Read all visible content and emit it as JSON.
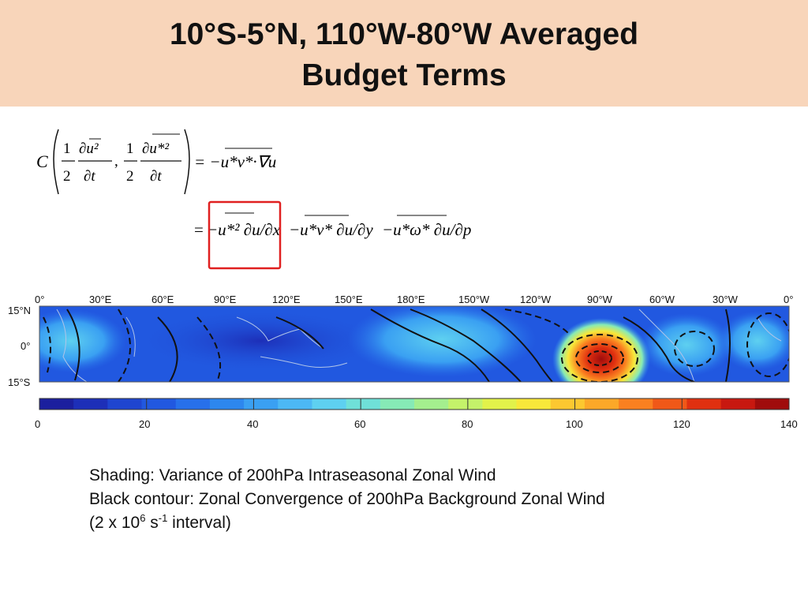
{
  "title": {
    "line1": "10°S-5°N, 110°W-80°W Averaged",
    "line2": "Budget Terms"
  },
  "equation": {
    "lhs_coef": "C",
    "half_num": "1",
    "half_den": "2",
    "ubar2_dt_num": "∂u²",
    "ustar2_dt_num": "∂u*²",
    "dt_den": "∂t",
    "comma": ",",
    "rhs1": "= −u*v*·∇u",
    "eq2": "=",
    "term1": "−u*² ∂u/∂x",
    "term2": "−u*v* ∂u/∂y",
    "term3": "−u*ω* ∂u/∂p"
  },
  "map": {
    "lon_labels": [
      "0°",
      "30°E",
      "60°E",
      "90°E",
      "120°E",
      "150°E",
      "180°E",
      "150°W",
      "120°W",
      "90°W",
      "60°W",
      "30°W",
      "0°"
    ],
    "lat_labels": [
      "15°N",
      "0°",
      "15°S"
    ],
    "colorbar_ticks": [
      "0",
      "20",
      "40",
      "60",
      "80",
      "100",
      "120",
      "140"
    ],
    "colorbar_colors": [
      "#1b1f9e",
      "#1d2fb8",
      "#1f45d0",
      "#2158e0",
      "#2770ea",
      "#2d87ee",
      "#3aa0f2",
      "#4cb8f4",
      "#5ed0f0",
      "#6fe0d8",
      "#86eab6",
      "#a4ef8e",
      "#c4f26a",
      "#e2f24a",
      "#f8e83a",
      "#fcc830",
      "#fca828",
      "#fa8020",
      "#f05818",
      "#e03010",
      "#c81810",
      "#a00c0c"
    ],
    "colors": {
      "contour": "#111111",
      "land": "#b0c4e8",
      "highlight": "#e02020"
    }
  },
  "caption": {
    "line1": "Shading: Variance of 200hPa Intraseasonal Zonal Wind",
    "line2": "Black contour: Zonal Convergence of 200hPa Background Zonal Wind",
    "line3_a": "(2 x 10",
    "line3_sup1": "6",
    "line3_b": " s",
    "line3_sup2": "-1",
    "line3_c": " interval)"
  }
}
